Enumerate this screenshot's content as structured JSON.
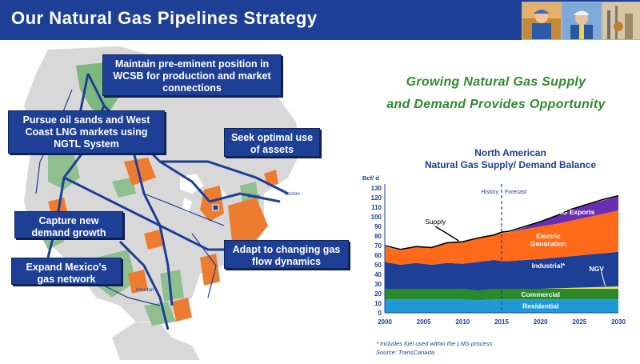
{
  "slide": {
    "title": "Our Natural Gas Pipelines Strategy"
  },
  "photos": [
    "worker-photo",
    "worker-with-hardhat-photo",
    "gas-facility-photo"
  ],
  "callouts": {
    "maintain": "Maintain pre-eminent position in WCSB for production and market connections",
    "pursue": "Pursue oil sands and West Coast LNG markets using NGTL System",
    "seek": "Seek optimal use of assets",
    "capture": "Capture new demand growth",
    "adapt": "Adapt to changing gas flow dynamics",
    "mexico": "Expand Mexico's gas network"
  },
  "map_labels": {
    "dawn": "Dawn",
    "boston": "Boston",
    "houston": "Houston"
  },
  "headline": {
    "line1": "Growing Natural Gas Supply",
    "line2": "and Demand Provides Opportunity"
  },
  "chart_title": {
    "line1": "North American",
    "line2": "Natural Gas Supply/ Demand Balance"
  },
  "footnotes": {
    "note": "* Includes fuel used within the LNG process",
    "source": "Source: TransCanada"
  },
  "colors": {
    "header": "#1d3f96",
    "headline": "#2e8a2e",
    "residential": "#1f9ad6",
    "commercial": "#2a8a2a",
    "ngv": "#e8e860",
    "industrial": "#1d3f96",
    "electric": "#ff6a1a",
    "lng": "#6a2fb0"
  },
  "chart_data": {
    "type": "area",
    "stacked": true,
    "x": [
      2000,
      2002,
      2004,
      2006,
      2008,
      2010,
      2012,
      2014,
      2015,
      2016,
      2018,
      2020,
      2022,
      2024,
      2026,
      2028,
      2030
    ],
    "series": [
      {
        "name": "Residential",
        "values": [
          14,
          14,
          14,
          14,
          14,
          14,
          13,
          14,
          14,
          14,
          14,
          14,
          14,
          14,
          14,
          14,
          14
        ]
      },
      {
        "name": "Commercial",
        "values": [
          11,
          11,
          11,
          11,
          11,
          11,
          10,
          11,
          11,
          11,
          11,
          11,
          11,
          11,
          11,
          11,
          11
        ]
      },
      {
        "name": "NGV",
        "values": [
          0,
          0,
          0,
          0,
          0,
          0,
          0,
          0,
          0,
          0,
          0,
          0,
          0.5,
          1,
          1.5,
          2,
          2.5
        ]
      },
      {
        "name": "Industrial*",
        "values": [
          28,
          25,
          27,
          25,
          27,
          26,
          30,
          30,
          29,
          29,
          30,
          31,
          32,
          33,
          34,
          35,
          36
        ]
      },
      {
        "name": "Electric Generation",
        "values": [
          16,
          15,
          17,
          18,
          21,
          23,
          25,
          26,
          29,
          30,
          32,
          34,
          35,
          37,
          39,
          41,
          43
        ]
      },
      {
        "name": "LNG Exports",
        "values": [
          0,
          0,
          0,
          0,
          0,
          0,
          0,
          0,
          0,
          0,
          2,
          5,
          9,
          12,
          13,
          14,
          15
        ]
      }
    ],
    "supply_line": {
      "name": "Supply",
      "values": [
        70,
        66,
        69,
        68,
        73,
        74,
        78,
        81,
        84,
        85,
        90,
        95,
        101,
        108,
        113,
        118,
        122
      ]
    },
    "x_ticks": [
      2000,
      2005,
      2010,
      2015,
      2020,
      2025,
      2030
    ],
    "y_ticks": [
      0,
      10,
      20,
      30,
      40,
      50,
      60,
      70,
      80,
      90,
      100,
      110,
      120,
      130
    ],
    "ylabel": "Bcf/ d",
    "ylim": [
      0,
      130
    ],
    "xlim": [
      2000,
      2030
    ],
    "divider_year": 2015,
    "history_label": "History",
    "forecast_label": "Forecast",
    "area_labels": {
      "lng": "LNG Exports",
      "electric_1": "Electric",
      "electric_2": "Generation",
      "industrial": "Industrial*",
      "ngv": "NGV",
      "commercial": "Commercial",
      "residential": "Residential",
      "supply": "Supply"
    }
  }
}
